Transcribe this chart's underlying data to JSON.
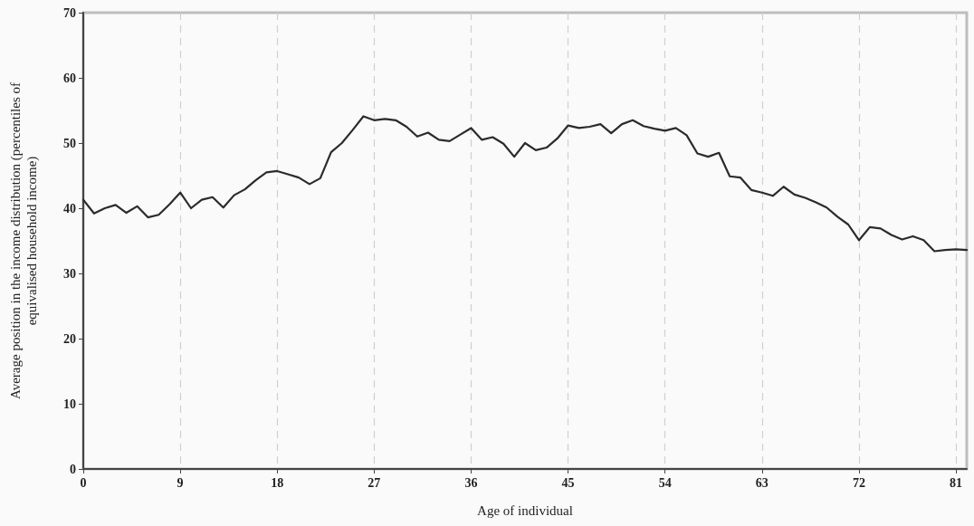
{
  "chart_data": {
    "type": "line",
    "xlabel": "Age of individual",
    "ylabel": "Average position in the income distribution (percentiles of\nequivalised household income)",
    "x": [
      0,
      1,
      2,
      3,
      4,
      5,
      6,
      7,
      8,
      9,
      10,
      11,
      12,
      13,
      14,
      15,
      16,
      17,
      18,
      19,
      20,
      21,
      22,
      23,
      24,
      25,
      26,
      27,
      28,
      29,
      30,
      31,
      32,
      33,
      34,
      35,
      36,
      37,
      38,
      39,
      40,
      41,
      42,
      43,
      44,
      45,
      46,
      47,
      48,
      49,
      50,
      51,
      52,
      53,
      54,
      55,
      56,
      57,
      58,
      59,
      60,
      61,
      62,
      63,
      64,
      65,
      66,
      67,
      68,
      69,
      70,
      71,
      72,
      73,
      74,
      75,
      76,
      77,
      78,
      79,
      80,
      81,
      82
    ],
    "series": [
      {
        "color": "#2b2b2b",
        "values": [
          41.3,
          39.2,
          40.0,
          40.5,
          39.3,
          40.3,
          38.6,
          39.0,
          40.6,
          42.4,
          40.0,
          41.3,
          41.7,
          40.1,
          42.0,
          42.9,
          44.3,
          45.5,
          45.7,
          45.2,
          44.7,
          43.7,
          44.6,
          48.6,
          50.0,
          52.0,
          54.1,
          53.5,
          53.7,
          53.5,
          52.5,
          51.0,
          51.6,
          50.5,
          50.3,
          51.3,
          52.3,
          50.5,
          50.9,
          49.9,
          47.9,
          50.0,
          48.9,
          49.3,
          50.7,
          52.7,
          52.3,
          52.5,
          52.9,
          51.5,
          52.9,
          53.5,
          52.6,
          52.2,
          51.9,
          52.3,
          51.2,
          48.4,
          47.9,
          48.5,
          44.9,
          44.7,
          42.8,
          42.4,
          41.9,
          43.3,
          42.1,
          41.6,
          40.9,
          40.1,
          38.7,
          37.5,
          35.1,
          37.1,
          36.9,
          35.9,
          35.2,
          35.7,
          35.1,
          33.4,
          33.6,
          33.7,
          33.6
        ]
      }
    ],
    "xlim": [
      0,
      82
    ],
    "xticks": [
      0,
      9,
      18,
      27,
      36,
      45,
      54,
      63,
      72,
      81
    ],
    "ylim": [
      0,
      70
    ],
    "yticks": [
      0,
      10,
      20,
      30,
      40,
      50,
      60,
      70
    ],
    "grid": "x",
    "marker": "none",
    "line_style": "solid"
  }
}
